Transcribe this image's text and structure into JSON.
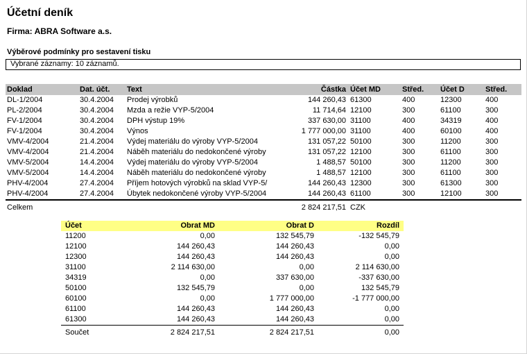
{
  "report": {
    "title": "Účetní deník",
    "company": "Firma: ABRA Software a.s.",
    "conditions_heading": "Výběrové podmínky pro sestavení tisku",
    "conditions_value": "Vybrané záznamy: 10 záznamů."
  },
  "journal": {
    "columns": [
      "Doklad",
      "Dat. účt.",
      "Text",
      "Částka",
      "Účet MD",
      "Střed.",
      "Účet D",
      "Střed."
    ],
    "rows": [
      [
        "DL-1/2004",
        "30.4.2004",
        "Prodej výrobků",
        "144 260,43",
        "61300",
        "400",
        "12300",
        "400"
      ],
      [
        "PL-2/2004",
        "30.4.2004",
        "Mzda a režie VYP-5/2004",
        "11 714,64",
        "12100",
        "300",
        "61100",
        "300"
      ],
      [
        "FV-1/2004",
        "30.4.2004",
        "DPH výstup 19%",
        "337 630,00",
        "31100",
        "400",
        "34319",
        "400"
      ],
      [
        "FV-1/2004",
        "30.4.2004",
        "Výnos",
        "1 777 000,00",
        "31100",
        "400",
        "60100",
        "400"
      ],
      [
        "VMV-4/2004",
        "21.4.2004",
        "Výdej materiálu do výroby VYP-5/2004",
        "131 057,22",
        "50100",
        "300",
        "11200",
        "300"
      ],
      [
        "VMV-4/2004",
        "21.4.2004",
        "Náběh materiálu do nedokončené výroby",
        "131 057,22",
        "12100",
        "300",
        "61100",
        "300"
      ],
      [
        "VMV-5/2004",
        "14.4.2004",
        "Výdej materiálu do výroby VYP-5/2004",
        "1 488,57",
        "50100",
        "300",
        "11200",
        "300"
      ],
      [
        "VMV-5/2004",
        "14.4.2004",
        "Náběh materiálu do nedokončené výroby",
        "1 488,57",
        "12100",
        "300",
        "61100",
        "300"
      ],
      [
        "PHV-4/2004",
        "27.4.2004",
        "Příjem hotových výrobků na sklad VYP-5/",
        "144 260,43",
        "12300",
        "300",
        "61300",
        "300"
      ],
      [
        "PHV-4/2004",
        "27.4.2004",
        "Úbytek nedokončené výroby VYP-5/2004",
        "144 260,43",
        "61100",
        "300",
        "12100",
        "300"
      ]
    ],
    "total_label": "Celkem",
    "total_amount": "2 824 217,51",
    "total_currency": "CZK"
  },
  "summary": {
    "columns": [
      "Účet",
      "Obrat MD",
      "Obrat D",
      "Rozdíl"
    ],
    "rows": [
      [
        "11200",
        "0,00",
        "132 545,79",
        "-132 545,79"
      ],
      [
        "12100",
        "144 260,43",
        "144 260,43",
        "0,00"
      ],
      [
        "12300",
        "144 260,43",
        "144 260,43",
        "0,00"
      ],
      [
        "31100",
        "2 114 630,00",
        "0,00",
        "2 114 630,00"
      ],
      [
        "34319",
        "0,00",
        "337 630,00",
        "-337 630,00"
      ],
      [
        "50100",
        "132 545,79",
        "0,00",
        "132 545,79"
      ],
      [
        "60100",
        "0,00",
        "1 777 000,00",
        "-1 777 000,00"
      ],
      [
        "61100",
        "144 260,43",
        "144 260,43",
        "0,00"
      ],
      [
        "61300",
        "144 260,43",
        "144 260,43",
        "0,00"
      ]
    ],
    "total_label": "Součet",
    "totals": [
      "2 824 217,51",
      "2 824 217,51",
      "0,00"
    ]
  },
  "colors": {
    "journal_header_bg": "#c6c6c6",
    "summary_header_bg": "#ffff85"
  }
}
